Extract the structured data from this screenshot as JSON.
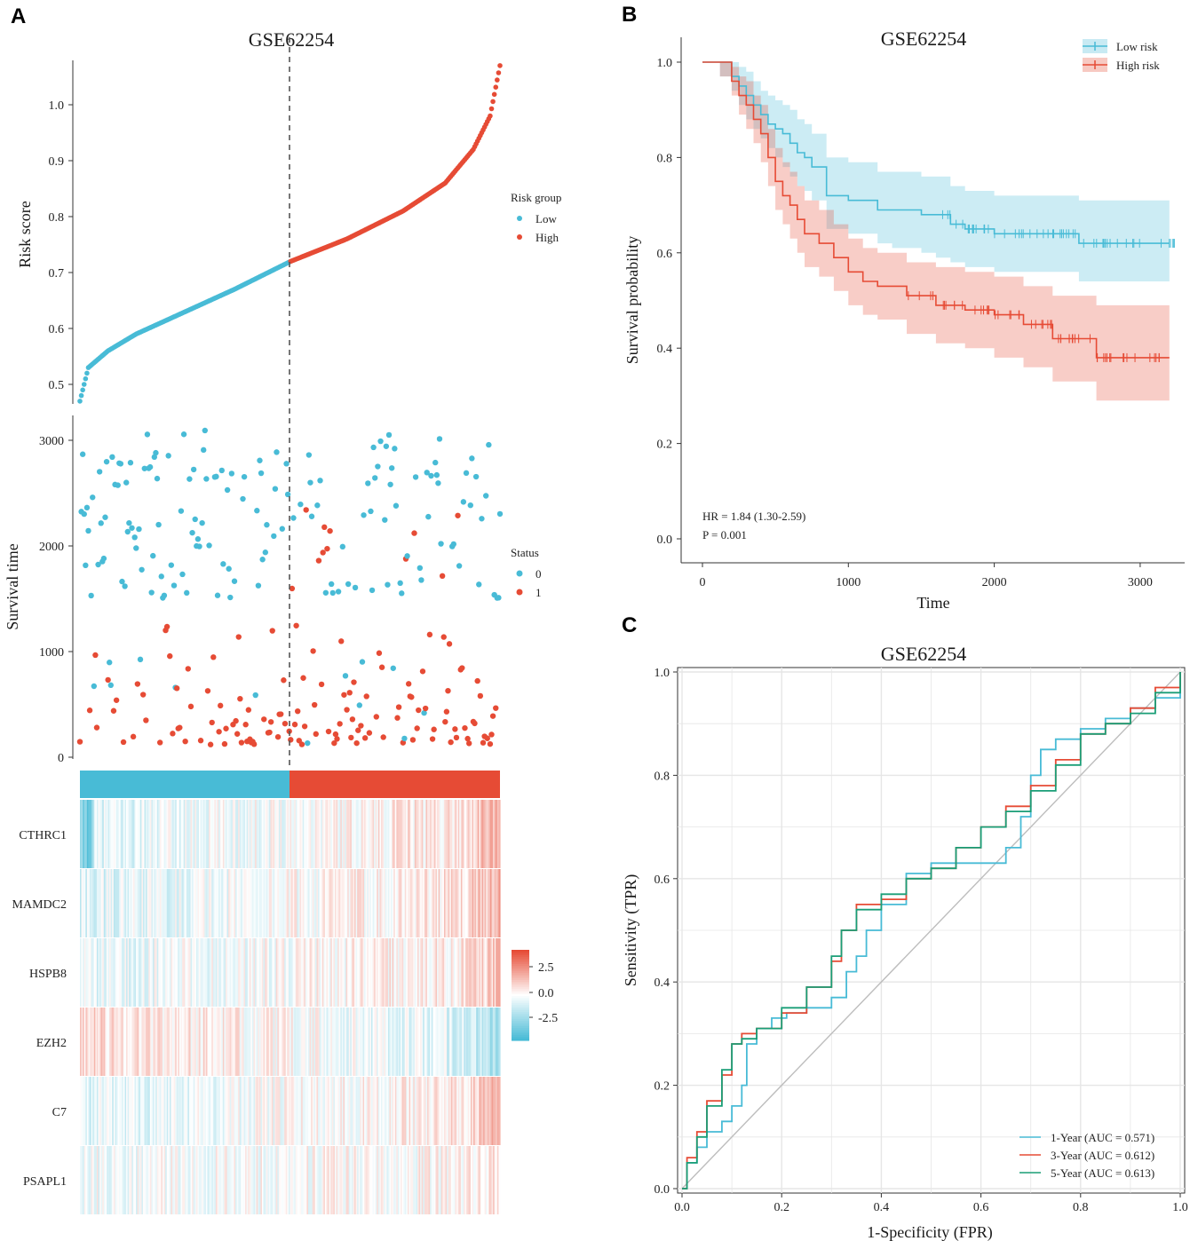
{
  "colors": {
    "low": "#48BBD6",
    "high": "#E64B35",
    "rocGreen": "#1A9E77",
    "grid": "#e6e6e6"
  },
  "chart_data": [
    {
      "id": "A1",
      "type": "scatter",
      "panel": "A",
      "title": "GSE62254",
      "ylabel": "Risk score",
      "ylim": [
        0.47,
        1.07
      ],
      "yticks": [
        "0.5",
        "0.6",
        "0.7",
        "0.8",
        "0.9",
        "1.0"
      ],
      "legend_title": "Risk group",
      "legend": [
        "Low",
        "High"
      ],
      "n_samples": 300,
      "cutoff_index": 150,
      "series_desc": "sorted risk score rising from 0.47 to 1.07, cutoff at 0.72",
      "curve_anchors": [
        [
          0,
          0.47
        ],
        [
          3,
          0.5
        ],
        [
          6,
          0.53
        ],
        [
          20,
          0.56
        ],
        [
          40,
          0.59
        ],
        [
          75,
          0.63
        ],
        [
          110,
          0.67
        ],
        [
          150,
          0.72
        ],
        [
          190,
          0.76
        ],
        [
          230,
          0.81
        ],
        [
          260,
          0.86
        ],
        [
          280,
          0.92
        ],
        [
          292,
          0.98
        ],
        [
          299,
          1.07
        ]
      ]
    },
    {
      "id": "A2",
      "type": "scatter",
      "panel": "A",
      "ylabel": "Survival time",
      "ylim": [
        0,
        3200
      ],
      "yticks": [
        "0",
        "1000",
        "2000",
        "3000"
      ],
      "legend_title": "Status",
      "legend": [
        "0",
        "1"
      ]
    },
    {
      "id": "A3",
      "type": "heatmap",
      "panel": "A",
      "genes": [
        "CTHRC1",
        "MAMDC2",
        "HSPB8",
        "EZH2",
        "C7",
        "PSAPL1"
      ],
      "colorbar_ticks": [
        "2.5",
        "0.0",
        "-2.5"
      ],
      "gene_trend": [
        0.35,
        0.35,
        0.25,
        -0.4,
        0.3,
        0.1
      ]
    },
    {
      "id": "B",
      "type": "line",
      "panel": "B",
      "title": "GSE62254",
      "xlabel": "Time",
      "ylabel": "Survival probability",
      "xlim": [
        -100,
        3200
      ],
      "ylim": [
        -0.04,
        1.04
      ],
      "xticks": [
        0,
        1000,
        2000,
        3000
      ],
      "yticks": [
        "0.0",
        "0.2",
        "0.4",
        "0.6",
        "0.8",
        "1.0"
      ],
      "legend": [
        "Low risk",
        "High risk"
      ],
      "hr_text": "HR = 1.84 (1.30-2.59)",
      "p_text": "P = 0.001",
      "series": [
        {
          "name": "Low risk",
          "x": [
            0,
            120,
            200,
            250,
            300,
            350,
            400,
            450,
            500,
            550,
            600,
            650,
            700,
            750,
            850,
            1000,
            1200,
            1300,
            1500,
            1600,
            1700,
            1800,
            2000,
            2200,
            2580,
            3200
          ],
          "y": [
            1.0,
            1.0,
            0.97,
            0.95,
            0.93,
            0.91,
            0.89,
            0.87,
            0.86,
            0.85,
            0.83,
            0.81,
            0.8,
            0.78,
            0.72,
            0.71,
            0.69,
            0.69,
            0.68,
            0.68,
            0.66,
            0.65,
            0.64,
            0.64,
            0.62,
            0.62
          ],
          "lower": [
            1.0,
            0.97,
            0.94,
            0.91,
            0.88,
            0.86,
            0.84,
            0.82,
            0.8,
            0.78,
            0.76,
            0.74,
            0.73,
            0.71,
            0.65,
            0.64,
            0.62,
            0.61,
            0.6,
            0.59,
            0.58,
            0.57,
            0.56,
            0.56,
            0.54,
            0.54
          ],
          "upper": [
            1.0,
            1.0,
            1.0,
            0.99,
            0.98,
            0.96,
            0.94,
            0.93,
            0.92,
            0.91,
            0.9,
            0.88,
            0.87,
            0.85,
            0.8,
            0.79,
            0.77,
            0.77,
            0.76,
            0.76,
            0.74,
            0.73,
            0.72,
            0.72,
            0.71,
            0.71
          ]
        },
        {
          "name": "High risk",
          "x": [
            0,
            120,
            200,
            250,
            300,
            350,
            400,
            450,
            500,
            550,
            600,
            650,
            700,
            800,
            900,
            1000,
            1100,
            1200,
            1400,
            1600,
            1800,
            2000,
            2200,
            2400,
            2700,
            3200
          ],
          "y": [
            1.0,
            1.0,
            0.96,
            0.93,
            0.91,
            0.88,
            0.85,
            0.8,
            0.75,
            0.72,
            0.7,
            0.67,
            0.64,
            0.62,
            0.59,
            0.56,
            0.54,
            0.53,
            0.51,
            0.49,
            0.48,
            0.47,
            0.45,
            0.42,
            0.38,
            0.38
          ],
          "lower": [
            1.0,
            0.97,
            0.93,
            0.89,
            0.86,
            0.83,
            0.79,
            0.74,
            0.69,
            0.66,
            0.63,
            0.6,
            0.57,
            0.55,
            0.52,
            0.49,
            0.47,
            0.46,
            0.43,
            0.41,
            0.4,
            0.38,
            0.36,
            0.33,
            0.29,
            0.29
          ],
          "upper": [
            1.0,
            1.0,
            0.99,
            0.97,
            0.96,
            0.93,
            0.91,
            0.86,
            0.82,
            0.79,
            0.77,
            0.74,
            0.71,
            0.69,
            0.66,
            0.63,
            0.61,
            0.6,
            0.58,
            0.57,
            0.56,
            0.55,
            0.53,
            0.51,
            0.49,
            0.49
          ]
        }
      ]
    },
    {
      "id": "C",
      "type": "line",
      "panel": "C",
      "title": "GSE62254",
      "xlabel": "1-Specificity (FPR)",
      "ylabel": "Sensitivity (TPR)",
      "xlim": [
        0,
        1
      ],
      "ylim": [
        0,
        1
      ],
      "xticks": [
        "0.0",
        "0.2",
        "0.4",
        "0.6",
        "0.8",
        "1.0"
      ],
      "yticks": [
        "0.0",
        "0.2",
        "0.4",
        "0.6",
        "0.8",
        "1.0"
      ],
      "series": [
        {
          "name": "1-Year (AUC = 0.571)",
          "x": [
            0,
            0.01,
            0.03,
            0.05,
            0.08,
            0.1,
            0.12,
            0.13,
            0.15,
            0.18,
            0.21,
            0.25,
            0.3,
            0.33,
            0.35,
            0.37,
            0.4,
            0.45,
            0.5,
            0.6,
            0.65,
            0.68,
            0.7,
            0.72,
            0.75,
            0.8,
            0.85,
            0.9,
            0.95,
            1.0
          ],
          "y": [
            0,
            0.05,
            0.08,
            0.11,
            0.13,
            0.16,
            0.2,
            0.28,
            0.31,
            0.33,
            0.34,
            0.35,
            0.37,
            0.42,
            0.45,
            0.5,
            0.55,
            0.61,
            0.63,
            0.63,
            0.66,
            0.72,
            0.8,
            0.85,
            0.87,
            0.89,
            0.91,
            0.93,
            0.95,
            1.0
          ]
        },
        {
          "name": "3-Year (AUC = 0.612)",
          "x": [
            0,
            0.01,
            0.03,
            0.05,
            0.08,
            0.1,
            0.12,
            0.15,
            0.2,
            0.25,
            0.3,
            0.32,
            0.35,
            0.4,
            0.45,
            0.5,
            0.55,
            0.6,
            0.65,
            0.7,
            0.75,
            0.8,
            0.85,
            0.9,
            0.95,
            1.0
          ],
          "y": [
            0,
            0.06,
            0.11,
            0.17,
            0.22,
            0.28,
            0.3,
            0.31,
            0.34,
            0.39,
            0.44,
            0.5,
            0.55,
            0.56,
            0.6,
            0.62,
            0.66,
            0.7,
            0.74,
            0.78,
            0.83,
            0.88,
            0.9,
            0.93,
            0.97,
            1.0
          ]
        },
        {
          "name": "5-Year (AUC = 0.613)",
          "x": [
            0,
            0.01,
            0.03,
            0.05,
            0.08,
            0.1,
            0.12,
            0.15,
            0.2,
            0.25,
            0.3,
            0.32,
            0.35,
            0.4,
            0.45,
            0.5,
            0.55,
            0.6,
            0.65,
            0.7,
            0.75,
            0.8,
            0.85,
            0.9,
            0.95,
            1.0
          ],
          "y": [
            0,
            0.05,
            0.1,
            0.16,
            0.23,
            0.28,
            0.29,
            0.31,
            0.35,
            0.39,
            0.45,
            0.5,
            0.54,
            0.57,
            0.6,
            0.62,
            0.66,
            0.7,
            0.73,
            0.77,
            0.82,
            0.88,
            0.9,
            0.92,
            0.96,
            1.0
          ]
        },
        {
          "name": "reference",
          "x": [
            0,
            1
          ],
          "y": [
            0,
            1
          ]
        }
      ]
    }
  ],
  "labels": {
    "A": "A",
    "B": "B",
    "C": "C",
    "titleA": "GSE62254",
    "titleB": "GSE62254",
    "titleC": "GSE62254",
    "riskScore": "Risk score",
    "survivalTime": "Survival time",
    "riskGroup": "Risk group",
    "low": "Low",
    "high": "High",
    "status": "Status",
    "s0": "0",
    "s1": "1",
    "survProb": "Survival probability",
    "time": "Time",
    "lowRisk": "Low risk",
    "highRisk": "High risk",
    "hr": "HR = 1.84 (1.30-2.59)",
    "p": "P = 0.001",
    "tpr": "Sensitivity (TPR)",
    "fpr": "1-Specificity (FPR)",
    "auc1": "1-Year (AUC = 0.571)",
    "auc3": "3-Year (AUC = 0.612)",
    "auc5": "5-Year (AUC = 0.613)"
  }
}
